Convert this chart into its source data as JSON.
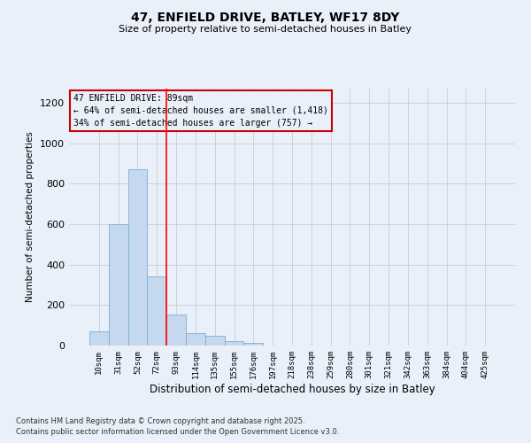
{
  "title": "47, ENFIELD DRIVE, BATLEY, WF17 8DY",
  "subtitle": "Size of property relative to semi-detached houses in Batley",
  "xlabel": "Distribution of semi-detached houses by size in Batley",
  "ylabel": "Number of semi-detached properties",
  "categories": [
    "10sqm",
    "31sqm",
    "52sqm",
    "72sqm",
    "93sqm",
    "114sqm",
    "135sqm",
    "155sqm",
    "176sqm",
    "197sqm",
    "218sqm",
    "238sqm",
    "259sqm",
    "280sqm",
    "301sqm",
    "321sqm",
    "342sqm",
    "363sqm",
    "384sqm",
    "404sqm",
    "425sqm"
  ],
  "values": [
    70,
    600,
    870,
    340,
    155,
    60,
    47,
    20,
    15,
    0,
    0,
    0,
    0,
    0,
    0,
    0,
    0,
    0,
    0,
    0,
    0
  ],
  "bar_color": "#c5d8ed",
  "bar_edge_color": "#7aafd4",
  "grid_color": "#cccccc",
  "bg_color": "#eaf0fa",
  "annotation_line1": "47 ENFIELD DRIVE: 89sqm",
  "annotation_line2": "← 64% of semi-detached houses are smaller (1,418)",
  "annotation_line3": "34% of semi-detached houses are larger (757) →",
  "annotation_box_color": "#cc0000",
  "vline_x_index": 3.5,
  "ylim": [
    0,
    1270
  ],
  "yticks": [
    0,
    200,
    400,
    600,
    800,
    1000,
    1200
  ],
  "footnote1": "Contains HM Land Registry data © Crown copyright and database right 2025.",
  "footnote2": "Contains public sector information licensed under the Open Government Licence v3.0."
}
